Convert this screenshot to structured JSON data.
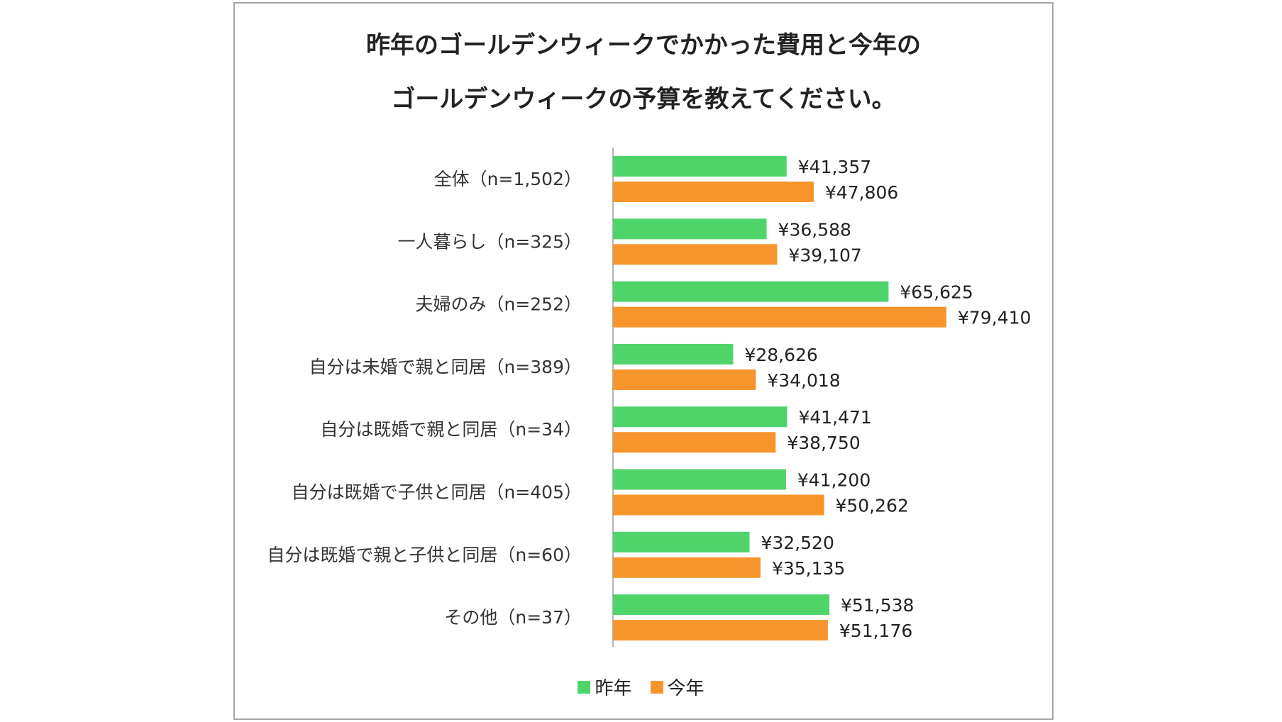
{
  "chart_data": {
    "type": "bar",
    "orientation": "horizontal",
    "title_lines": [
      "昨年のゴールデンウィークでかかった費用と今年の",
      "ゴールデンウィークの予算を教えてください。"
    ],
    "categories": [
      "全体（n=1,502）",
      "一人暮らし（n=325）",
      "夫婦のみ（n=252）",
      "自分は未婚で親と同居（n=389）",
      "自分は既婚で親と同居（n=34）",
      "自分は既婚で子供と同居（n=405）",
      "自分は既婚で親と子供と同居（n=60）",
      "その他（n=37）"
    ],
    "series": [
      {
        "name": "昨年",
        "color": "#4fd46a",
        "values": [
          41357,
          36588,
          65625,
          28626,
          41471,
          41200,
          32520,
          51538
        ]
      },
      {
        "name": "今年",
        "color": "#f7952c",
        "values": [
          47806,
          39107,
          79410,
          34018,
          38750,
          50262,
          35135,
          51176
        ]
      }
    ],
    "value_prefix": "¥",
    "legend_position": "bottom",
    "grid": false
  }
}
